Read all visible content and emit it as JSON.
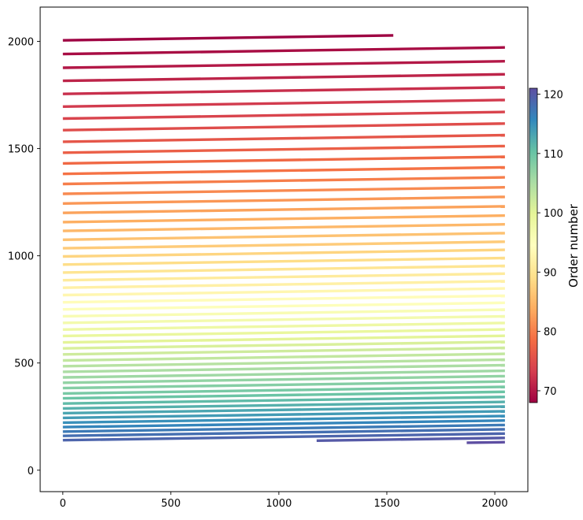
{
  "chart_data": {
    "type": "line",
    "title": "",
    "xlabel": "",
    "ylabel": "",
    "xlim": [
      -105,
      2153
    ],
    "ylim": [
      -100,
      2160
    ],
    "xticks": [
      0,
      500,
      1000,
      1500,
      2000
    ],
    "yticks": [
      0,
      500,
      1000,
      1500,
      2000
    ],
    "grid": false,
    "colormap": "Spectral",
    "series": {
      "order_min": 68,
      "order_max": 121,
      "x_start": 0,
      "x_end": 2047,
      "slope": 0.015,
      "y_at_x0": [
        2005,
        1941,
        1877,
        1816,
        1755,
        1696,
        1640,
        1586,
        1532,
        1481,
        1431,
        1382,
        1335,
        1289,
        1244,
        1200,
        1157,
        1116,
        1075,
        1035,
        997,
        959,
        922,
        886,
        851,
        817,
        783,
        750,
        718,
        687,
        656,
        626,
        596,
        568,
        540,
        512,
        485,
        459,
        433,
        408,
        383,
        358,
        335,
        311,
        288,
        266,
        244,
        222,
        201,
        180,
        160,
        140,
        120,
        100
      ],
      "partial_segments": [
        {
          "order": 68,
          "x_start": 0,
          "x_end": 1530
        },
        {
          "order": 120,
          "x_start": 1175,
          "x_end": 2047
        },
        {
          "order": 121,
          "x_start": 1870,
          "x_end": 2047
        }
      ]
    },
    "colorbar": {
      "label": "Order number",
      "range": [
        68,
        121
      ],
      "ticks": [
        70,
        80,
        90,
        100,
        110,
        120
      ]
    }
  }
}
